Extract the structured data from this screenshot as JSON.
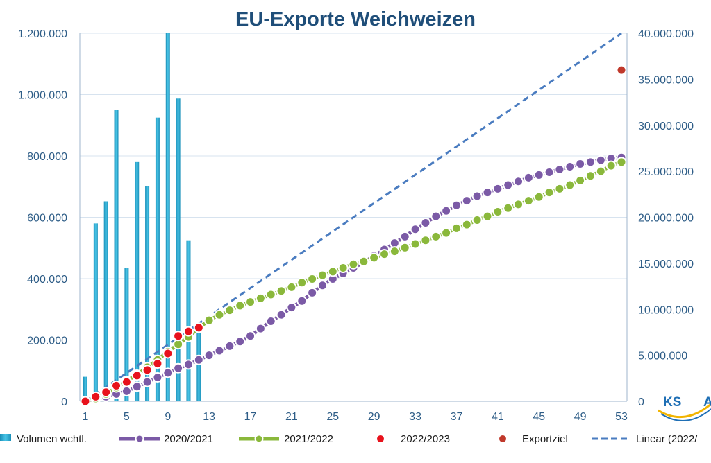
{
  "chart_data": {
    "type": "bar",
    "title": "EU-Exporte Weichweizen",
    "left_axis": {
      "min": 0,
      "max": 1200000,
      "ticks": [
        0,
        200000,
        400000,
        600000,
        800000,
        1000000,
        1200000
      ],
      "tick_labels": [
        "0",
        "200.000",
        "400.000",
        "600.000",
        "800.000",
        "1.000.000",
        "1.200.000"
      ]
    },
    "right_axis": {
      "min": 0,
      "max": 40000000,
      "ticks": [
        0,
        5000000,
        10000000,
        15000000,
        20000000,
        25000000,
        30000000,
        35000000,
        40000000
      ],
      "tick_labels": [
        "0",
        "5.000.000",
        "10.000.000",
        "15.000.000",
        "20.000.000",
        "25.000.000",
        "30.000.000",
        "35.000.000",
        "40.000.000"
      ]
    },
    "x_axis": {
      "min": 1,
      "max": 53,
      "tick_labels": [
        "1",
        "5",
        "9",
        "13",
        "17",
        "21",
        "25",
        "29",
        "33",
        "37",
        "41",
        "45",
        "49",
        "53"
      ],
      "tick_values": [
        1,
        5,
        9,
        13,
        17,
        21,
        25,
        29,
        33,
        37,
        41,
        45,
        49,
        53
      ]
    },
    "grid": true,
    "legend_position": "bottom",
    "series": [
      {
        "name": "Volumen wchtl.",
        "kind": "bar",
        "axis": "left",
        "color": "#2bb3d8",
        "x": [
          1,
          2,
          3,
          4,
          5,
          6,
          7,
          8,
          9,
          10,
          11,
          12
        ],
        "values": [
          80000,
          580000,
          652000,
          950000,
          435000,
          780000,
          702000,
          925000,
          1200000,
          987000,
          525000,
          243000
        ]
      },
      {
        "name": "2020/2021",
        "kind": "line-markers",
        "axis": "right",
        "color": "#7b5aa6",
        "x": [
          1,
          2,
          3,
          4,
          5,
          6,
          7,
          8,
          9,
          10,
          11,
          12,
          13,
          14,
          15,
          16,
          17,
          18,
          19,
          20,
          21,
          22,
          23,
          24,
          25,
          26,
          27,
          28,
          29,
          30,
          31,
          32,
          33,
          34,
          35,
          36,
          37,
          38,
          39,
          40,
          41,
          42,
          43,
          44,
          45,
          46,
          47,
          48,
          49,
          50,
          51,
          52,
          53
        ],
        "values": [
          0,
          250000,
          500000,
          800000,
          1100000,
          1600000,
          2100000,
          2600000,
          3100000,
          3600000,
          4000000,
          4500000,
          5000000,
          5500000,
          6000000,
          6500000,
          7100000,
          7900000,
          8700000,
          9400000,
          10200000,
          10900000,
          11800000,
          12600000,
          13300000,
          13900000,
          14500000,
          15100000,
          15800000,
          16500000,
          17200000,
          17900000,
          18700000,
          19400000,
          20100000,
          20700000,
          21300000,
          21800000,
          22300000,
          22700000,
          23100000,
          23500000,
          23900000,
          24300000,
          24600000,
          24900000,
          25200000,
          25500000,
          25800000,
          26000000,
          26200000,
          26400000,
          26500000
        ]
      },
      {
        "name": "2021/2022",
        "kind": "line-markers",
        "axis": "right",
        "color": "#8ab83b",
        "x": [
          1,
          2,
          3,
          4,
          5,
          6,
          7,
          8,
          9,
          10,
          11,
          12,
          13,
          14,
          15,
          16,
          17,
          18,
          19,
          20,
          21,
          22,
          23,
          24,
          25,
          26,
          27,
          28,
          29,
          30,
          31,
          32,
          33,
          34,
          35,
          36,
          37,
          38,
          39,
          40,
          41,
          42,
          43,
          44,
          45,
          46,
          47,
          48,
          49,
          50,
          51,
          52,
          53
        ],
        "values": [
          0,
          300000,
          800000,
          1500000,
          2200000,
          2900000,
          3700000,
          4500000,
          5400000,
          6200000,
          7000000,
          8000000,
          8800000,
          9400000,
          9900000,
          10400000,
          10800000,
          11200000,
          11600000,
          12000000,
          12400000,
          12900000,
          13300000,
          13700000,
          14100000,
          14500000,
          14900000,
          15200000,
          15600000,
          16000000,
          16300000,
          16700000,
          17100000,
          17500000,
          17900000,
          18300000,
          18800000,
          19200000,
          19700000,
          20100000,
          20600000,
          21000000,
          21400000,
          21800000,
          22200000,
          22700000,
          23100000,
          23500000,
          24000000,
          24500000,
          25000000,
          25600000,
          26000000
        ]
      },
      {
        "name": "2022/2023",
        "kind": "markers",
        "axis": "right",
        "color": "#e8121c",
        "x": [
          1,
          2,
          3,
          4,
          5,
          6,
          7,
          8,
          9,
          10,
          11,
          12
        ],
        "values": [
          0,
          500000,
          1000000,
          1700000,
          2100000,
          2800000,
          3400000,
          4100000,
          5200000,
          7100000,
          7600000,
          8000000
        ]
      },
      {
        "name": "Exportziel",
        "kind": "markers",
        "axis": "right",
        "color": "#c0392b",
        "x": [
          53
        ],
        "values": [
          36000000
        ]
      },
      {
        "name": "Linear (2022/",
        "kind": "dashed-line",
        "axis": "right",
        "color": "#4a7cc0",
        "x": [
          1,
          53
        ],
        "values": [
          0,
          40000000
        ]
      }
    ],
    "logo_text": "KS",
    "logo_text_2": "A"
  }
}
